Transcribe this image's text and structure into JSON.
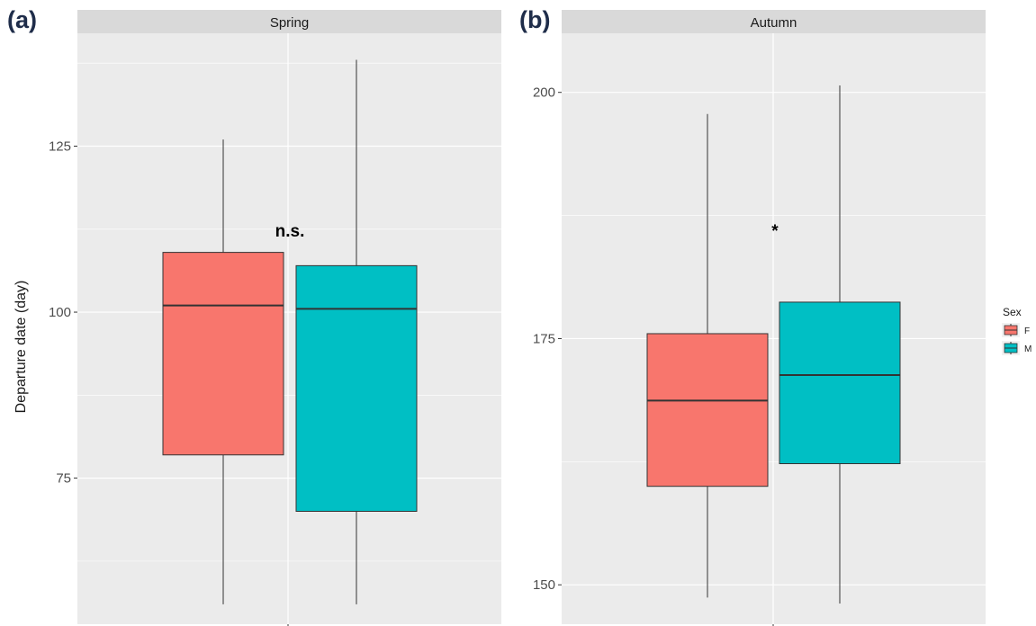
{
  "chart_data": [
    {
      "type": "box",
      "panel_label": "(a)",
      "facet": "Spring",
      "ylabel": "Departure date (day)",
      "yticks": [
        75,
        100,
        125
      ],
      "ylim": [
        53,
        142
      ],
      "grid": true,
      "annotation": "n.s.",
      "boxes": [
        {
          "group": "F",
          "min": 56,
          "q1": 78.5,
          "median": 101,
          "q3": 109,
          "max": 126
        },
        {
          "group": "M",
          "min": 56,
          "q1": 70,
          "median": 100.5,
          "q3": 107,
          "max": 138
        }
      ]
    },
    {
      "type": "box",
      "panel_label": "(b)",
      "facet": "Autumn",
      "yticks": [
        150,
        175,
        200
      ],
      "ylim": [
        146,
        206
      ],
      "grid": true,
      "annotation": "*",
      "boxes": [
        {
          "group": "F",
          "min": 148.7,
          "q1": 160,
          "median": 168.7,
          "q3": 175.5,
          "max": 197.8
        },
        {
          "group": "M",
          "min": 148.1,
          "q1": 162.3,
          "median": 171.3,
          "q3": 178.7,
          "max": 200.7
        }
      ]
    }
  ],
  "legend": {
    "title": "Sex",
    "position": "right",
    "items": [
      {
        "label": "F",
        "color": "#F8766D"
      },
      {
        "label": "M",
        "color": "#00BFC4"
      }
    ]
  },
  "colors": {
    "panel_bg": "#EBEBEB",
    "strip_bg": "#D9D9D9",
    "grid": "#FFFFFF"
  }
}
